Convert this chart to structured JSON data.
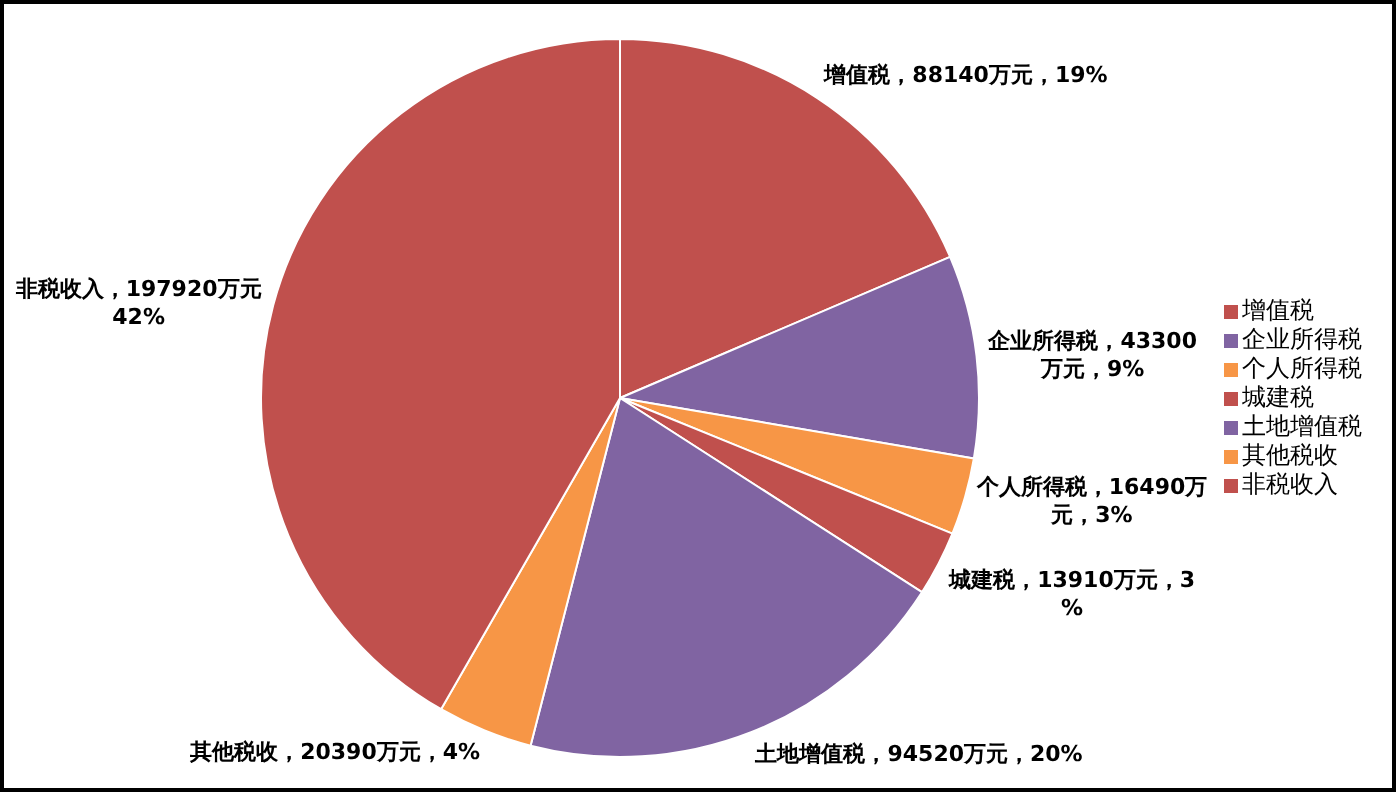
{
  "chart_data": {
    "type": "pie",
    "categories": [
      "增值税",
      "企业所得税",
      "个人所得税",
      "城建税",
      "土地增值税",
      "其他税收",
      "非税收入"
    ],
    "values": [
      88140,
      43300,
      16490,
      13910,
      94520,
      20390,
      197920
    ],
    "colors": [
      "#c0504d",
      "#8064a2",
      "#f79646",
      "#c0504d",
      "#8064a2",
      "#f79646",
      "#c0504d"
    ],
    "value_labels": [
      "增值税，88140万元，19%",
      "企业所得税，43300万元，9%",
      "个人所得税，16490万元，3%",
      "城建税，13910万元，3%",
      "土地增值税，94520万元，20%",
      "其他税收，20390万元，4%",
      "非税收入，197920万元42%"
    ],
    "legend": "right"
  }
}
